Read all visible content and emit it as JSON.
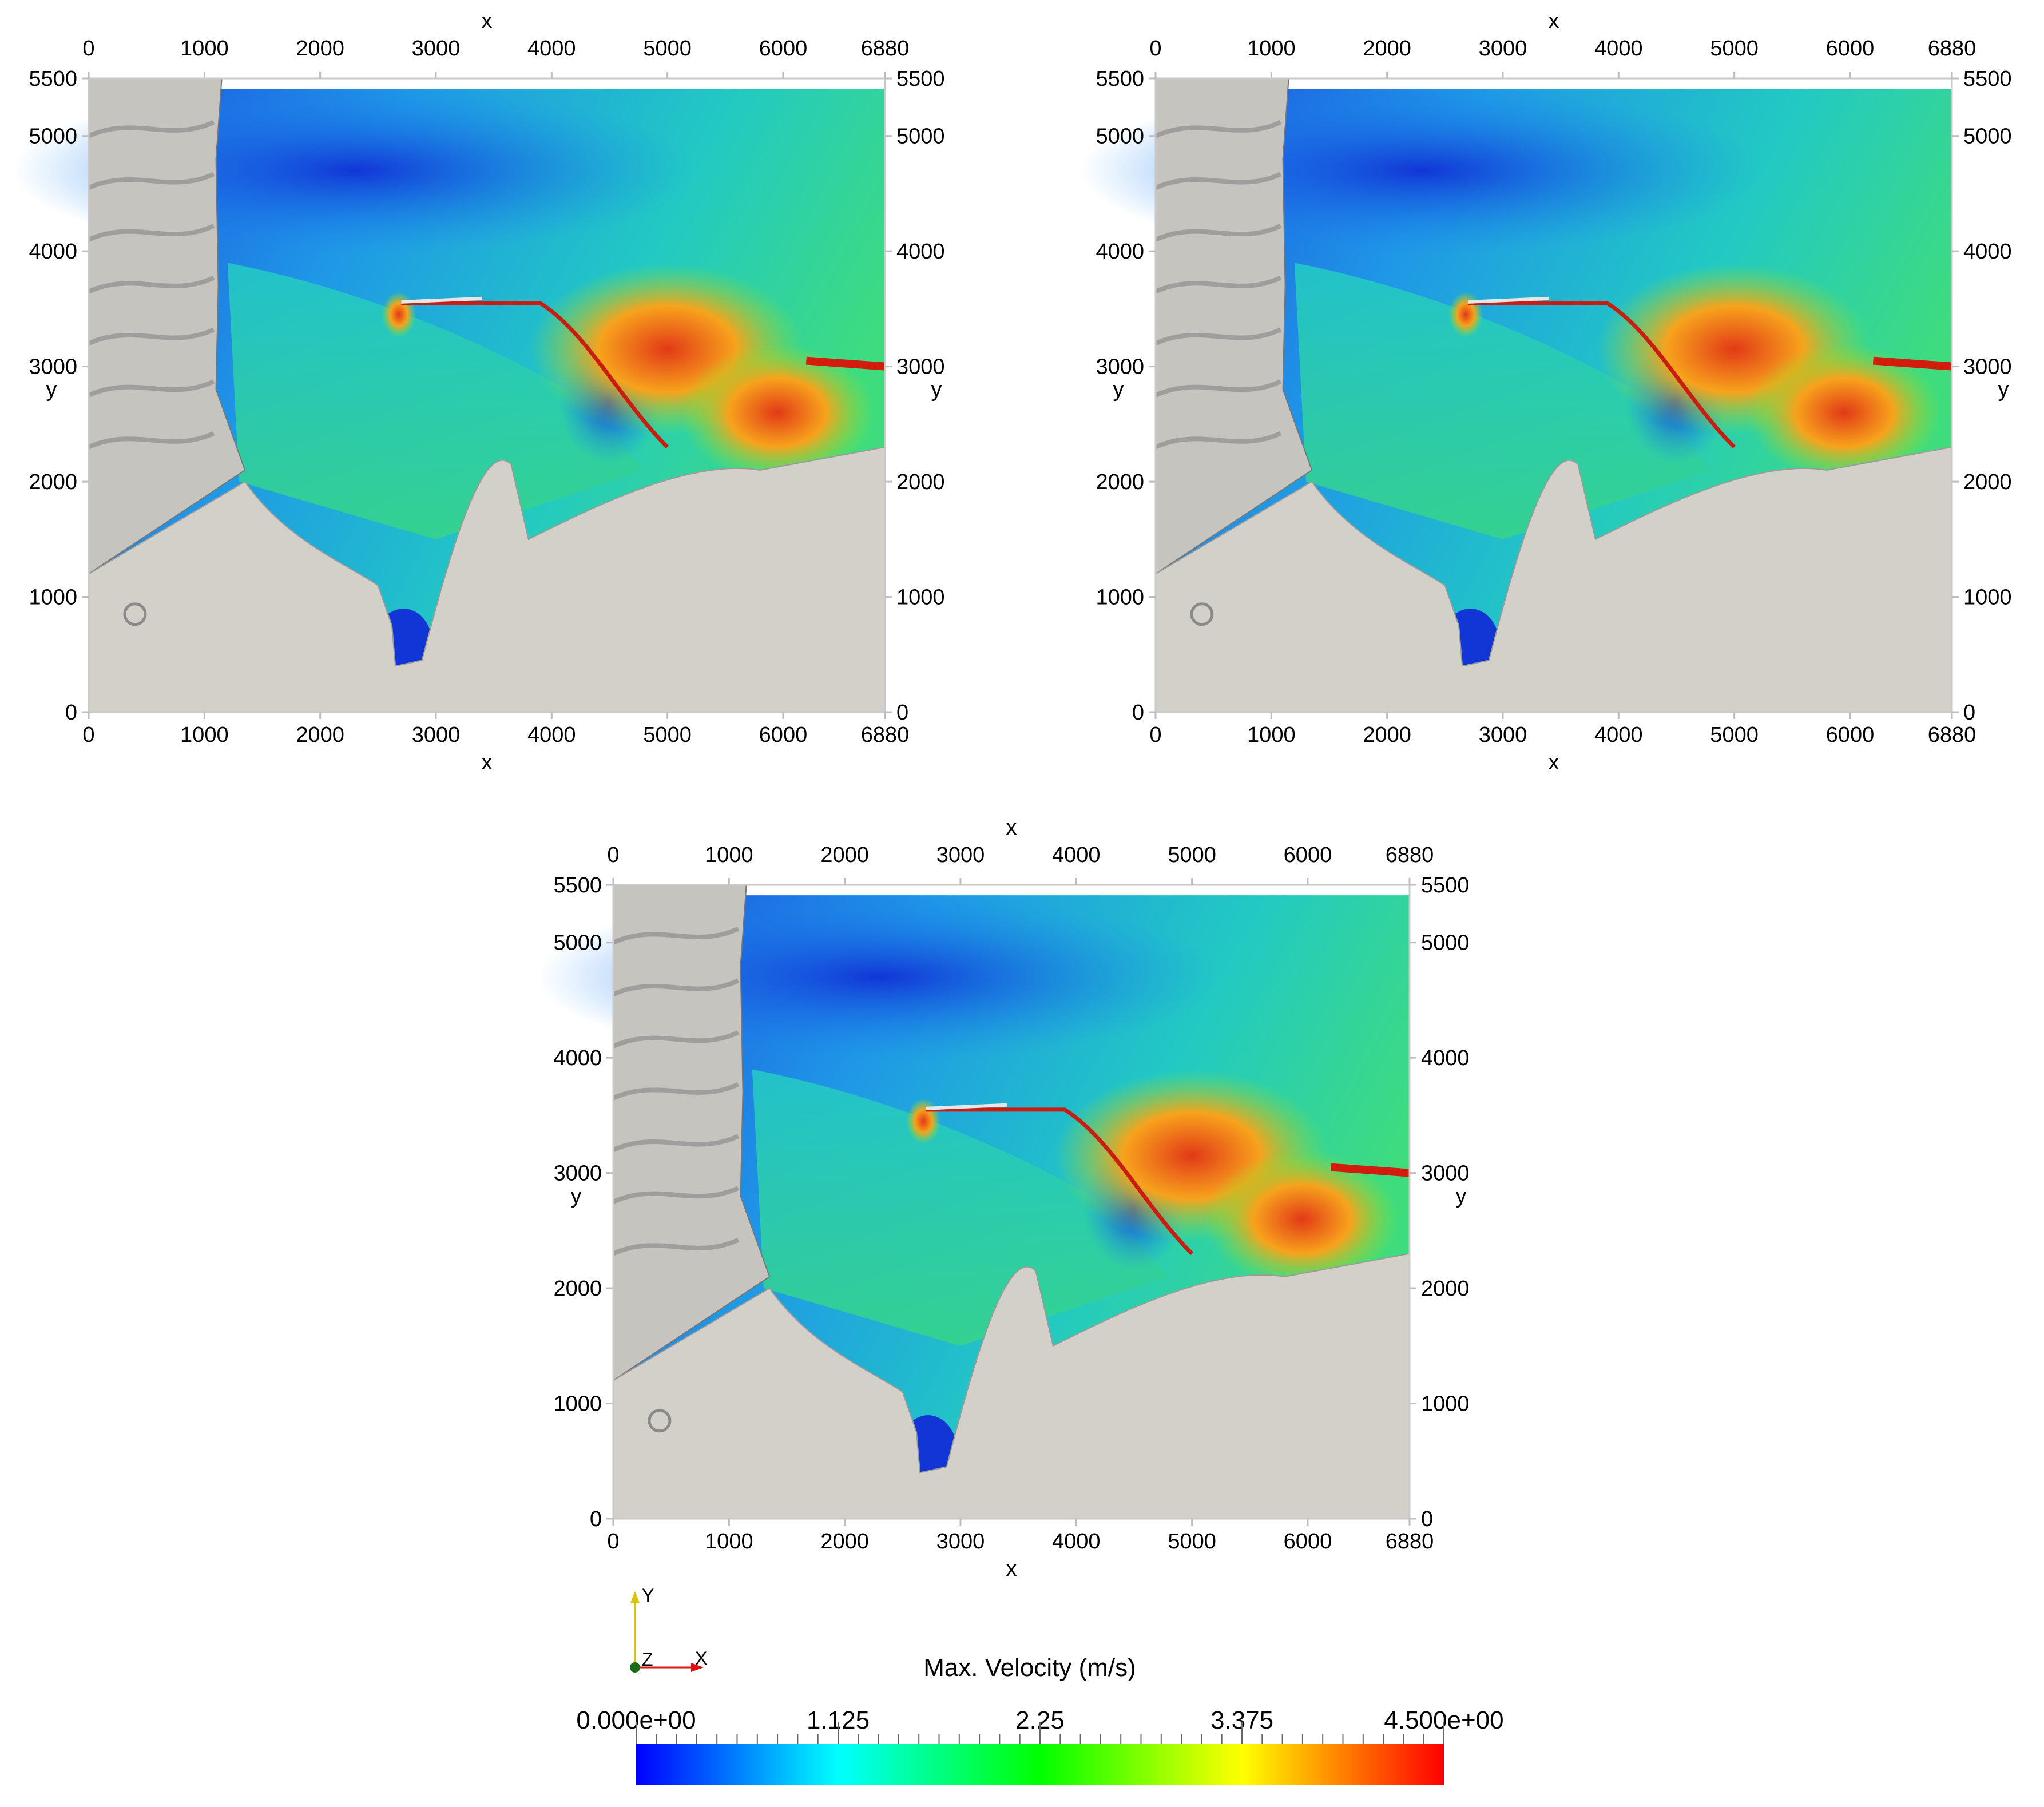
{
  "panels": [
    {
      "id": "top-left",
      "x_axis_title": "x",
      "y_axis_title": "y"
    },
    {
      "id": "top-right",
      "x_axis_title": "x",
      "y_axis_title": "y"
    },
    {
      "id": "bottom-center",
      "x_axis_title": "x",
      "y_axis_title": "y"
    }
  ],
  "axes": {
    "x_ticks": [
      "0",
      "1000",
      "2000",
      "3000",
      "4000",
      "5000",
      "6000",
      "6880"
    ],
    "x_tick_values": [
      0,
      1000,
      2000,
      3000,
      4000,
      5000,
      6000,
      6880
    ],
    "y_ticks": [
      "0",
      "1000",
      "2000",
      "3000",
      "4000",
      "5000",
      "5500"
    ],
    "y_tick_values": [
      0,
      1000,
      2000,
      3000,
      4000,
      5000,
      5500
    ],
    "x_range": [
      0,
      6880
    ],
    "y_range": [
      0,
      5500
    ]
  },
  "colorbar": {
    "title": "Max. Velocity (m/s)",
    "labels": [
      "0.000e+00",
      "1.125",
      "2.25",
      "3.375",
      "4.500e+00"
    ],
    "range": [
      0,
      4.5
    ],
    "colors": [
      "#0000ff",
      "#00ffff",
      "#00ff00",
      "#ffff00",
      "#ff0000"
    ]
  },
  "orientation_axes": {
    "y": "Y",
    "z": "Z",
    "x": "X"
  },
  "colors": {
    "land": "#cfccc6",
    "cliff_shade": "#8f8f8f",
    "deep_water": "#1c4fd8",
    "mid_water": "#2bd3b0",
    "jet": "#e23a17"
  }
}
